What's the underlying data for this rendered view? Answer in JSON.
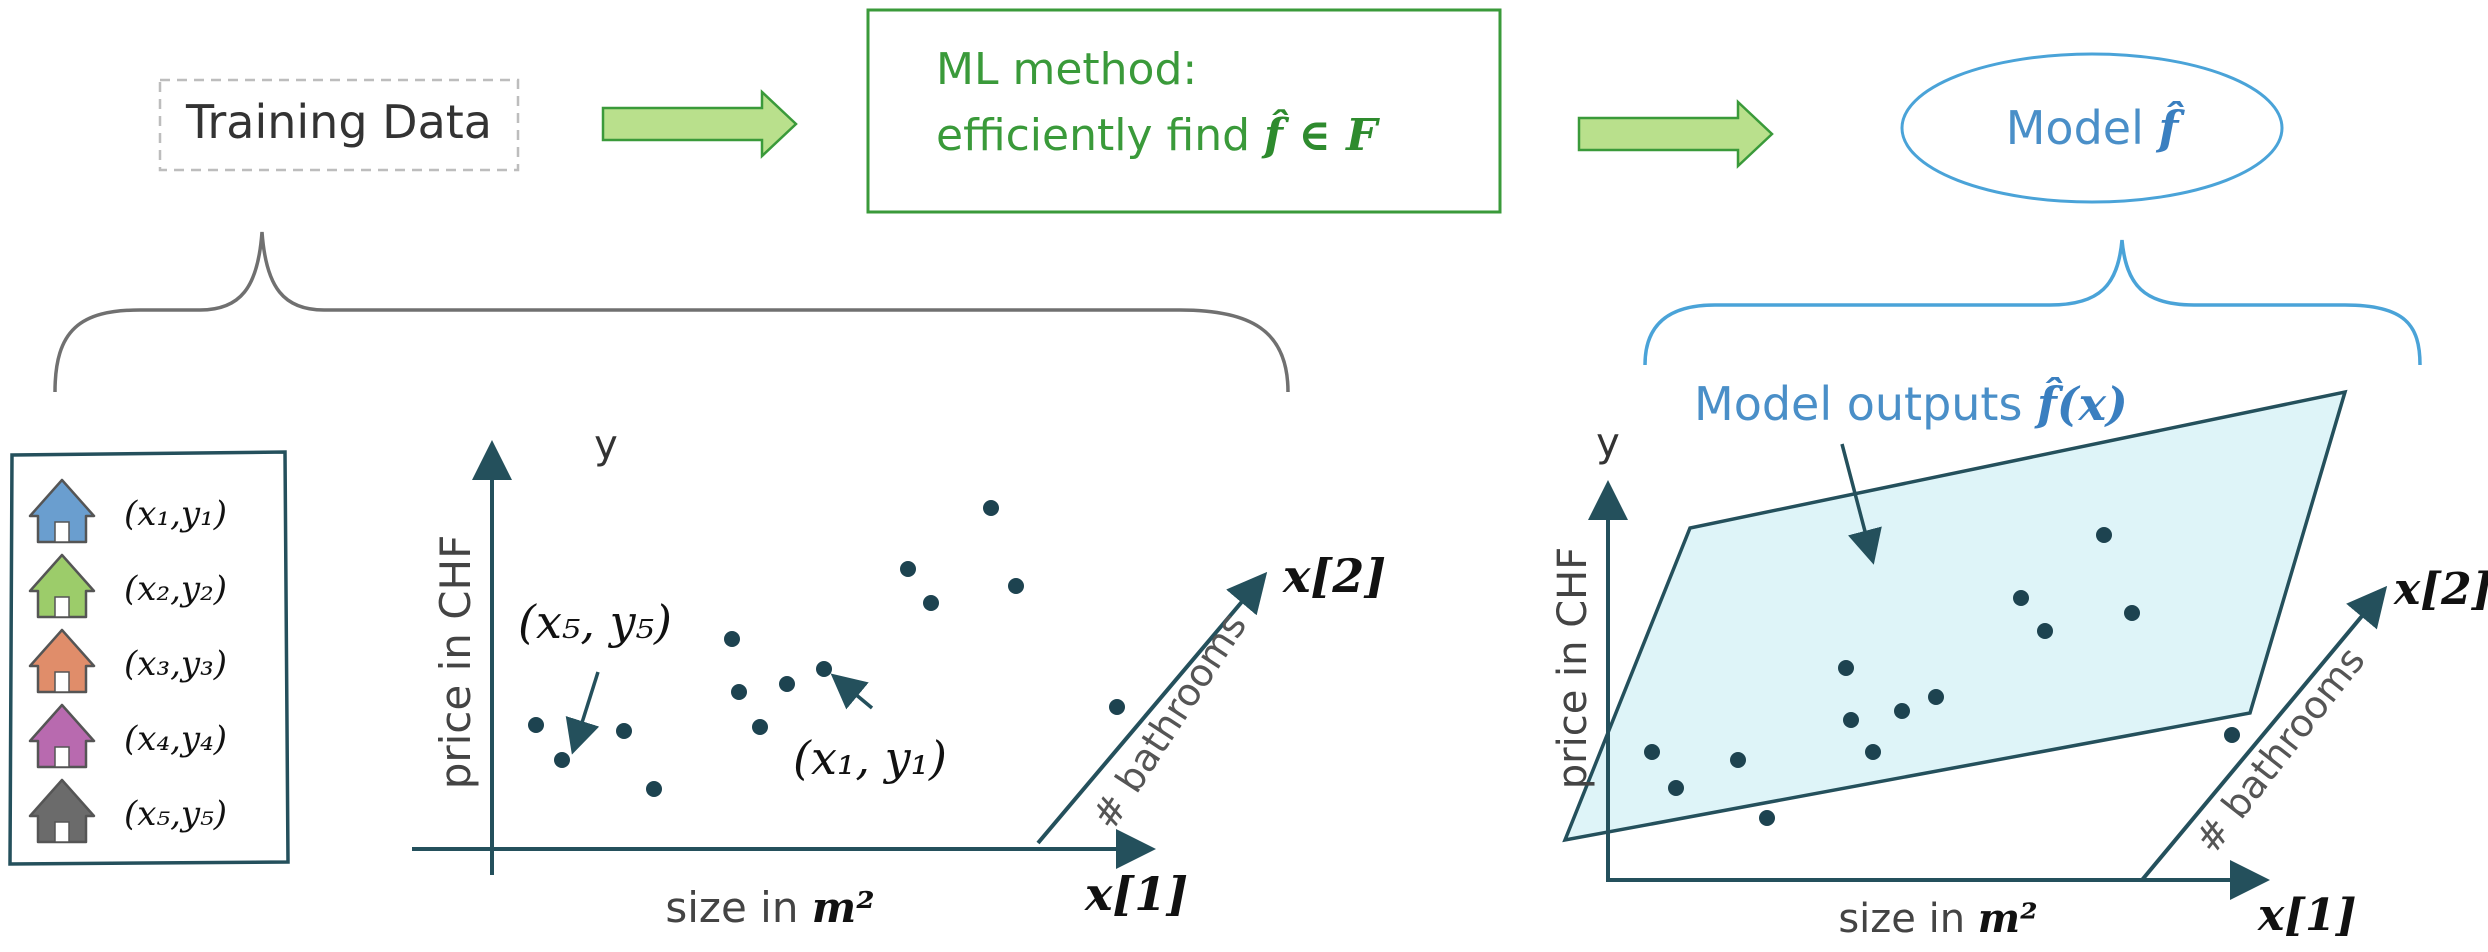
{
  "header": {
    "training_data": "Training Data",
    "ml_method_line1": "ML method:",
    "ml_method_line2_prefix": "efficiently find ",
    "ml_method_formula": "f̂ ∈ F",
    "model_prefix": "Model ",
    "model_symbol": "f̂"
  },
  "legend": {
    "items": [
      {
        "icon": "house-icon-blue",
        "color": "#6a9ecf",
        "label": "(x₁,y₁)"
      },
      {
        "icon": "house-icon-green",
        "color": "#9ccc6a",
        "label": "(x₂,y₂)"
      },
      {
        "icon": "house-icon-orange",
        "color": "#e08d6a",
        "label": "(x₃,y₃)"
      },
      {
        "icon": "house-icon-purple",
        "color": "#b86aaf",
        "label": "(x₄,y₄)"
      },
      {
        "icon": "house-icon-gray",
        "color": "#6b6b6b",
        "label": "(x₅,y₅)"
      }
    ]
  },
  "left_plot": {
    "y_label": "y",
    "y_axis_title": "price in CHF",
    "x_axis_title_prefix": "size in ",
    "x_axis_title_unit": "m²",
    "x1_label": "x[1]",
    "x2_label": "x[2]",
    "depth_axis_title": "# bathrooms",
    "annotation_x5": "(x₅, y₅)",
    "annotation_x1": "(x₁, y₁)"
  },
  "right_plot": {
    "y_label": "y",
    "y_axis_title": "price in CHF",
    "x_axis_title_prefix": "size in ",
    "x_axis_title_unit": "m²",
    "x1_label": "x[1]",
    "x2_label": "x[2]",
    "depth_axis_title": "# bathrooms",
    "outputs_prefix": "Model outputs ",
    "outputs_formula": "f̂(x)"
  },
  "colors": {
    "green": "#3a9a3a",
    "green_fill": "#b9e08c",
    "blue": "#4a8fc8",
    "teal": "#24505c",
    "plane_fill": "#def4f8",
    "gray": "#707070"
  }
}
